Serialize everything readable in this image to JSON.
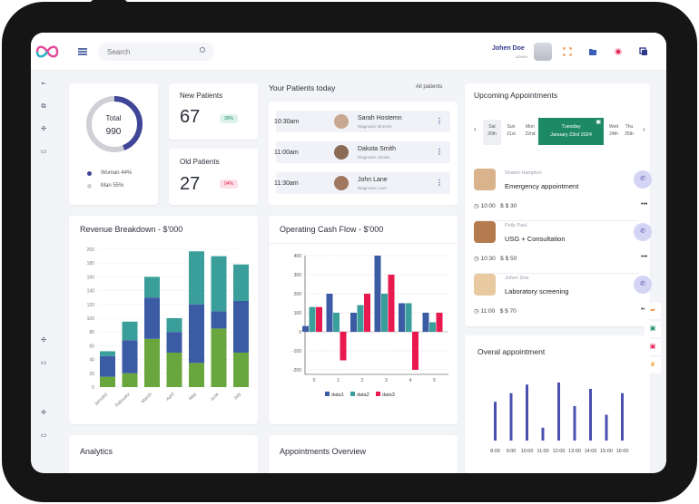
{
  "search": {
    "placeholder": "Search"
  },
  "user": {
    "name": "Johen Doe",
    "role": "ADMIN"
  },
  "totals": {
    "label": "Total",
    "value": "990",
    "legend": [
      {
        "label": "Woman 44%",
        "color": "#3f4597"
      },
      {
        "label": "Man 55%",
        "color": "#cfd0d6"
      }
    ]
  },
  "new_patients": {
    "title": "New Patients",
    "value": "67",
    "badge": "39%"
  },
  "old_patients": {
    "title": "Old Patients",
    "value": "27",
    "badge": "04%"
  },
  "patients_today": {
    "title": "Your Patients today",
    "link": "All patients",
    "rows": [
      {
        "time": "10:30am",
        "name": "Sarah Hostemn",
        "diagnosis": "Diagnosis: Bronchi"
      },
      {
        "time": "11:00am",
        "name": "Dakota Smith",
        "diagnosis": "Diagnosis: Stroke"
      },
      {
        "time": "11:30am",
        "name": "John Lane",
        "diagnosis": "Diagnosis: Liver"
      }
    ]
  },
  "upcoming": {
    "title": "Upcoming Appointments",
    "days": [
      {
        "name": "Sat",
        "num": "20th"
      },
      {
        "name": "Sun",
        "num": "21st"
      },
      {
        "name": "Mon",
        "num": "22nd"
      }
    ],
    "selected": {
      "name": "Tuesday",
      "date": "January 23rd 2024"
    },
    "days_after": [
      {
        "name": "Wed",
        "num": "24th"
      },
      {
        "name": "Thu",
        "num": "25th"
      }
    ],
    "items": [
      {
        "name": "Shawn Hampton",
        "title": "Emergency appointment",
        "time": "10:00",
        "price": "$ 30"
      },
      {
        "name": "Polly Paul",
        "title": "USG + Consultation",
        "time": "10:30",
        "price": "$ 50"
      },
      {
        "name": "Johen Doe",
        "title": "Laboratory screening",
        "time": "11:00",
        "price": "$ 70"
      }
    ]
  },
  "revenue": {
    "title": "Revenue Breakdown - $'000"
  },
  "cashflow": {
    "title": "Operating Cash Flow - $'000"
  },
  "overal": {
    "title": "Overal appointment"
  },
  "analytics": {
    "title": "Analytics"
  },
  "overview": {
    "title": "Appointments Overview"
  },
  "colors": {
    "accent": "#3f4597",
    "green": "#1e8a65",
    "bar_green": "#6aa63e",
    "bar_blue": "#3b5ba5",
    "bar_teal": "#3a9e9a",
    "red": "#e8194f"
  },
  "chart_data": [
    {
      "type": "bar",
      "title": "Revenue Breakdown - $'000",
      "categories": [
        "January",
        "February",
        "March",
        "April",
        "May",
        "June",
        "July"
      ],
      "ylim": [
        0,
        200
      ],
      "yticks": [
        0,
        20,
        40,
        60,
        80,
        100,
        120,
        140,
        160,
        180,
        200
      ],
      "series": [
        {
          "values": [
            15,
            20,
            70,
            50,
            35,
            85,
            50
          ],
          "color": "#6aa63e"
        },
        {
          "values": [
            30,
            48,
            60,
            30,
            85,
            25,
            75
          ],
          "color": "#3b5ba5"
        },
        {
          "values": [
            7,
            27,
            30,
            20,
            77,
            80,
            53
          ],
          "color": "#3a9e9a"
        }
      ]
    },
    {
      "type": "bar",
      "title": "Operating Cash Flow - $'000",
      "categories": [
        "0",
        "1",
        "2",
        "3",
        "4",
        "5"
      ],
      "ylim": [
        -200,
        400
      ],
      "yticks": [
        400,
        300,
        200,
        100,
        0,
        -100,
        -200
      ],
      "series": [
        {
          "name": "data1",
          "values": [
            30,
            200,
            100,
            400,
            150,
            100
          ],
          "color": "#3b5ba5"
        },
        {
          "name": "data2",
          "values": [
            130,
            100,
            140,
            200,
            150,
            50
          ],
          "color": "#3a9e9a"
        },
        {
          "name": "data3",
          "values": [
            130,
            -150,
            200,
            300,
            -200,
            100
          ],
          "color": "#e8194f"
        }
      ]
    },
    {
      "type": "bar",
      "title": "Overal appointment",
      "categories": [
        "8:00",
        "9:00",
        "10:00",
        "11:00",
        "12:00",
        "13:00",
        "14:00",
        "15:00",
        "16:00"
      ],
      "series": [
        {
          "values": [
            45,
            55,
            65,
            15,
            75,
            40,
            60,
            30,
            55
          ],
          "color": "#4a50b0"
        }
      ]
    }
  ]
}
